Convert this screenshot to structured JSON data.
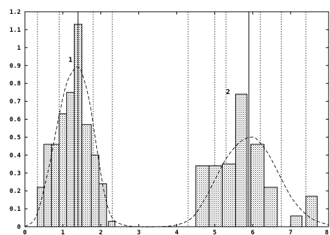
{
  "chart_data": {
    "type": "bar",
    "title": "",
    "xlabel": "",
    "ylabel": "",
    "xlim": [
      0,
      8
    ],
    "ylim": [
      0,
      1.2
    ],
    "grid": "dotted-vertical",
    "x_ticks": [
      "0",
      "1",
      "2",
      "3",
      "4",
      "5",
      "6",
      "7",
      "8"
    ],
    "y_ticks": [
      "0",
      "0.1",
      "0.2",
      "0.3",
      "0.4",
      "0.5",
      "0.6",
      "0.7",
      "0.8",
      "0.9",
      "1",
      "1.1",
      "1.2"
    ],
    "bars": [
      {
        "x0": 0.33,
        "x1": 0.5,
        "value": 0.22
      },
      {
        "x0": 0.5,
        "x1": 0.7,
        "value": 0.46
      },
      {
        "x0": 0.7,
        "x1": 0.9,
        "value": 0.46
      },
      {
        "x0": 0.9,
        "x1": 1.1,
        "value": 0.63
      },
      {
        "x0": 1.1,
        "x1": 1.3,
        "value": 0.75
      },
      {
        "x0": 1.3,
        "x1": 1.5,
        "value": 1.13
      },
      {
        "x0": 1.5,
        "x1": 1.75,
        "value": 0.57
      },
      {
        "x0": 1.75,
        "x1": 1.95,
        "value": 0.4
      },
      {
        "x0": 1.95,
        "x1": 2.15,
        "value": 0.24
      },
      {
        "x0": 2.2,
        "x1": 2.37,
        "value": 0.03
      },
      {
        "x0": 4.5,
        "x1": 4.85,
        "value": 0.34
      },
      {
        "x0": 4.85,
        "x1": 5.2,
        "value": 0.34
      },
      {
        "x0": 5.2,
        "x1": 5.55,
        "value": 0.35
      },
      {
        "x0": 5.55,
        "x1": 5.85,
        "value": 0.74
      },
      {
        "x0": 5.95,
        "x1": 6.3,
        "value": 0.46
      },
      {
        "x0": 6.3,
        "x1": 6.65,
        "value": 0.22
      },
      {
        "x0": 7.0,
        "x1": 7.3,
        "value": 0.06
      },
      {
        "x0": 7.4,
        "x1": 7.7,
        "value": 0.17
      }
    ],
    "curve": {
      "style": "dashed",
      "x": [
        0,
        0.3,
        0.6,
        0.9,
        1.1,
        1.3,
        1.4,
        1.5,
        1.7,
        1.9,
        2.1,
        2.3,
        2.6,
        3.0,
        3.5,
        4.0,
        4.4,
        4.7,
        5.0,
        5.3,
        5.6,
        5.8,
        5.95,
        6.1,
        6.4,
        6.7,
        7.0,
        7.3,
        7.6,
        8.0
      ],
      "y": [
        0.0,
        0.06,
        0.3,
        0.62,
        0.8,
        0.88,
        0.89,
        0.86,
        0.7,
        0.43,
        0.18,
        0.05,
        0.01,
        0.0,
        0.0,
        0.01,
        0.05,
        0.14,
        0.26,
        0.38,
        0.46,
        0.49,
        0.5,
        0.49,
        0.41,
        0.29,
        0.17,
        0.09,
        0.04,
        0.01
      ]
    },
    "peaks": [
      {
        "label": "1",
        "x": 1.4,
        "label_x": 1.2,
        "label_y": 0.92
      },
      {
        "label": "2",
        "x": 5.9,
        "label_x": 5.35,
        "label_y": 0.74
      }
    ],
    "grid_x": [
      0.33,
      0.9,
      1.8,
      2.3,
      4.3,
      5.0,
      5.3,
      6.2,
      6.75,
      7.4
    ]
  }
}
